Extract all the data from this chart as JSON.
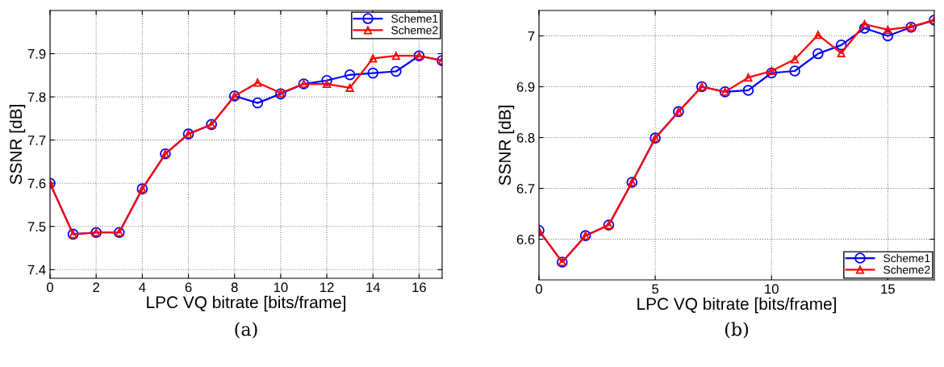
{
  "chart_data": [
    {
      "type": "line",
      "xlabel": "LPC VQ bitrate [bits/frame]",
      "ylabel": "SSNR [dB]",
      "annotations": [
        "(a)"
      ],
      "x": [
        0,
        1,
        2,
        3,
        4,
        5,
        6,
        7,
        8,
        9,
        10,
        11,
        12,
        13,
        14,
        15,
        16,
        17
      ],
      "xlim": [
        0,
        17
      ],
      "xticks": [
        0,
        2,
        4,
        6,
        8,
        10,
        12,
        14,
        16
      ],
      "ylim": [
        7.38,
        8.0
      ],
      "yticks": [
        7.4,
        7.5,
        7.6,
        7.7,
        7.8,
        7.9
      ],
      "grid": true,
      "legend": "top right",
      "series": [
        {
          "name": "Scheme1",
          "color": "#0000ff",
          "marker": "circle",
          "values": [
            7.6,
            7.482,
            7.486,
            7.486,
            7.587,
            7.668,
            7.714,
            7.736,
            7.802,
            7.786,
            7.807,
            7.83,
            7.838,
            7.851,
            7.855,
            7.859,
            7.895,
            7.884
          ]
        },
        {
          "name": "Scheme2",
          "color": "#ff0000",
          "marker": "triangle",
          "values": [
            7.6,
            7.482,
            7.486,
            7.486,
            7.587,
            7.668,
            7.714,
            7.736,
            7.802,
            7.833,
            7.809,
            7.83,
            7.83,
            7.821,
            7.889,
            7.895,
            7.895,
            7.884
          ]
        }
      ]
    },
    {
      "type": "line",
      "xlabel": "LPC VQ bitrate [bits/frame]",
      "ylabel": "SSNR [dB]",
      "annotations": [
        "(b)"
      ],
      "x": [
        0,
        1,
        2,
        3,
        4,
        5,
        6,
        7,
        8,
        9,
        10,
        11,
        12,
        13,
        14,
        15,
        16,
        17
      ],
      "xlim": [
        0,
        17
      ],
      "xticks": [
        0,
        5,
        10,
        15
      ],
      "ylim": [
        6.52,
        7.05
      ],
      "yticks": [
        6.6,
        6.7,
        6.8,
        6.9,
        7
      ],
      "grid": true,
      "legend": "bottom right",
      "series": [
        {
          "name": "Scheme1",
          "color": "#0000ff",
          "marker": "circle",
          "values": [
            6.617,
            6.555,
            6.607,
            6.628,
            6.712,
            6.799,
            6.851,
            6.9,
            6.89,
            6.893,
            6.927,
            6.931,
            6.965,
            6.982,
            7.015,
            7.0,
            7.017,
            7.031
          ]
        },
        {
          "name": "Scheme2",
          "color": "#ff0000",
          "marker": "triangle",
          "values": [
            6.617,
            6.555,
            6.607,
            6.628,
            6.712,
            6.799,
            6.851,
            6.9,
            6.89,
            6.918,
            6.931,
            6.954,
            7.002,
            6.966,
            7.023,
            7.012,
            7.018,
            7.031
          ]
        }
      ]
    }
  ]
}
